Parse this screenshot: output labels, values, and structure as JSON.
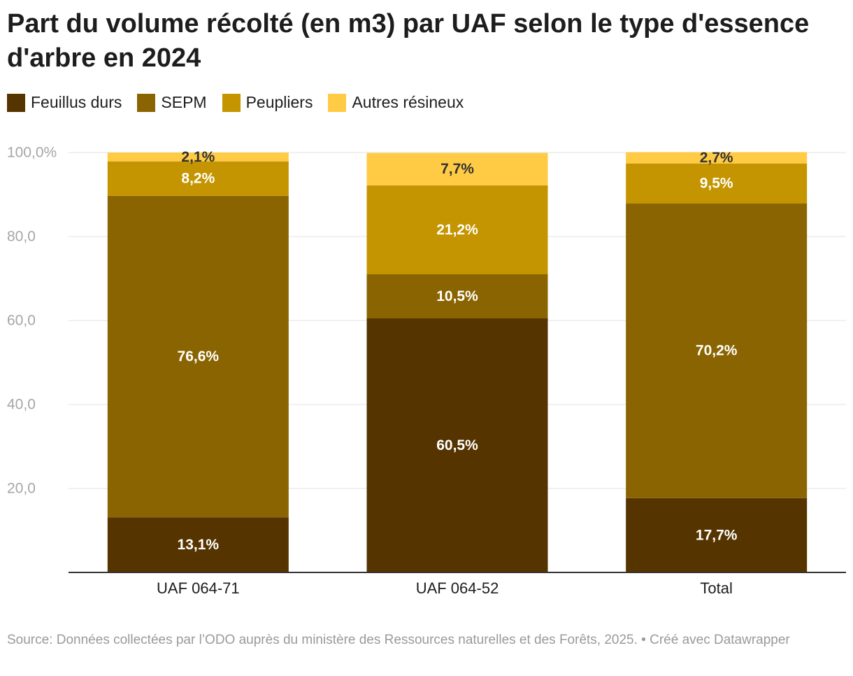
{
  "chart_data": {
    "type": "bar",
    "stacked": true,
    "title": "Part du volume récolté (en m3) par UAF selon le type d'essence d'arbre en 2024",
    "categories": [
      "UAF 064-71",
      "UAF 064-52",
      "Total"
    ],
    "series": [
      {
        "name": "Feuillus durs",
        "color": "#553400",
        "values": [
          13.1,
          60.5,
          17.7
        ],
        "labels": [
          "13,1%",
          "60,5%",
          "17,7%"
        ]
      },
      {
        "name": "SEPM",
        "color": "#8a6400",
        "values": [
          76.6,
          10.5,
          70.2
        ],
        "labels": [
          "76,6%",
          "10,5%",
          "70,2%"
        ]
      },
      {
        "name": "Peupliers",
        "color": "#c49500",
        "values": [
          8.2,
          21.2,
          9.5
        ],
        "labels": [
          "8,2%",
          "21,2%",
          "9,5%"
        ]
      },
      {
        "name": "Autres résineux",
        "color": "#ffcb45",
        "values": [
          2.1,
          7.7,
          2.7
        ],
        "labels": [
          "2,1%",
          "7,7%",
          "2,7%"
        ]
      }
    ],
    "yticks": [
      {
        "value": 20,
        "label": "20,0"
      },
      {
        "value": 40,
        "label": "40,0"
      },
      {
        "value": 60,
        "label": "60,0"
      },
      {
        "value": 80,
        "label": "80,0"
      },
      {
        "value": 100,
        "label": "100,0%"
      }
    ],
    "ylim": [
      0,
      100
    ],
    "xlabel": "",
    "ylabel": "",
    "legend_position": "top-left"
  },
  "footer": {
    "source": "Source: Données collectées par l’ODO auprès du ministère des Ressources naturelles et des Forêts, 2025. • Créé avec Datawrapper"
  }
}
